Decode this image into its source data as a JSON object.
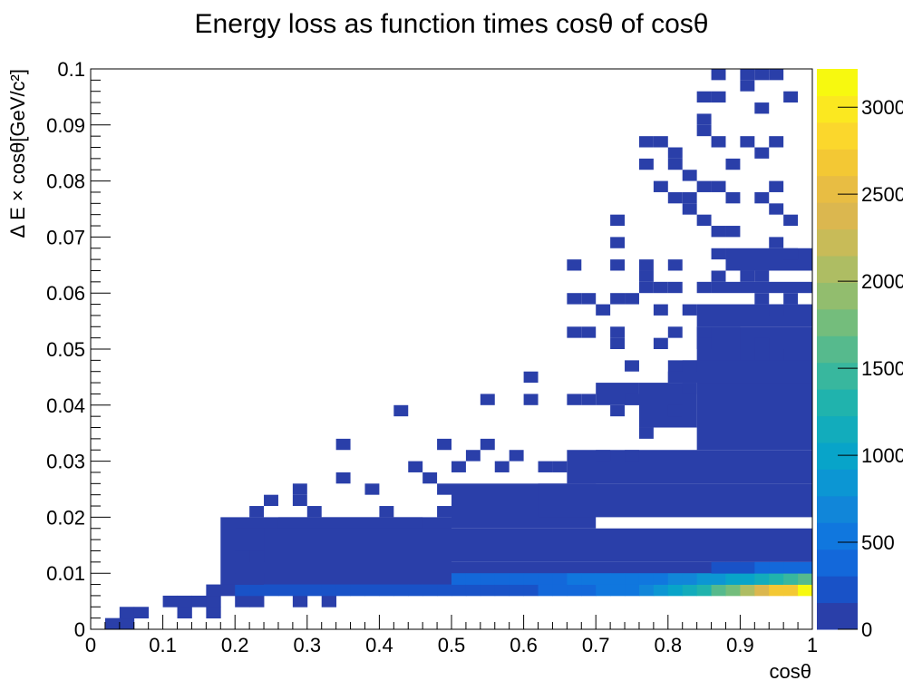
{
  "chart_data": {
    "type": "heatmap",
    "title": "Energy loss as function times cosθ of cosθ",
    "xlabel": "cosθ",
    "ylabel": "Δ E × cosθ[GeV/c²]",
    "xlim": [
      0,
      1
    ],
    "ylim": [
      0,
      0.1
    ],
    "x_ticks": [
      0,
      0.1,
      0.2,
      0.3,
      0.4,
      0.5,
      0.6,
      0.7,
      0.8,
      0.9,
      1
    ],
    "x_tick_labels": [
      "0",
      "0.1",
      "0.2",
      "0.3",
      "0.4",
      "0.5",
      "0.6",
      "0.7",
      "0.8",
      "0.9",
      "1"
    ],
    "y_ticks": [
      0,
      0.01,
      0.02,
      0.03,
      0.04,
      0.05,
      0.06,
      0.07,
      0.08,
      0.09,
      0.1
    ],
    "y_tick_labels": [
      "0",
      "0.01",
      "0.02",
      "0.03",
      "0.04",
      "0.05",
      "0.06",
      "0.07",
      "0.08",
      "0.09",
      "0.1"
    ],
    "colorbar": {
      "range": [
        0,
        3220
      ],
      "ticks": [
        0,
        500,
        1000,
        1500,
        2000,
        2500,
        3000
      ],
      "tick_labels": [
        "0",
        "500",
        "1000",
        "1500",
        "2000",
        "2500",
        "3000"
      ],
      "colors": [
        "#2a3fa9",
        "#1952c7",
        "#1368da",
        "#1077de",
        "#1186d9",
        "#0c96d3",
        "#08a4c9",
        "#12acbc",
        "#20b3ad",
        "#38b79e",
        "#56ba8d",
        "#74bd7c",
        "#92bd6e",
        "#aebd63",
        "#c8bb58",
        "#dbb74f",
        "#e8bd43",
        "#f3c834",
        "#fbd72c",
        "#fbe820",
        "#f7f90f"
      ]
    },
    "bins": {
      "nx": 50,
      "ny": 50,
      "x_width": 0.02,
      "y_width": 0.002,
      "comment_free_cells": [
        [
          0.03,
          0.001,
          60
        ],
        [
          0.05,
          0.001,
          60
        ],
        [
          0.05,
          0.003,
          55
        ],
        [
          0.07,
          0.003,
          50
        ],
        [
          0.11,
          0.005,
          30
        ],
        [
          0.13,
          0.003,
          25
        ],
        [
          0.13,
          0.005,
          40
        ],
        [
          0.15,
          0.005,
          35
        ],
        [
          0.17,
          0.003,
          20
        ],
        [
          0.17,
          0.005,
          45
        ],
        [
          0.17,
          0.007,
          40
        ],
        [
          0.19,
          0.007,
          120
        ],
        [
          0.21,
          0.005,
          30
        ],
        [
          0.21,
          0.007,
          160
        ],
        [
          0.21,
          0.009,
          80
        ],
        [
          0.23,
          0.005,
          60
        ],
        [
          0.23,
          0.007,
          210
        ],
        [
          0.23,
          0.009,
          120
        ],
        [
          0.25,
          0.007,
          190
        ],
        [
          0.27,
          0.007,
          185
        ],
        [
          0.29,
          0.005,
          25
        ],
        [
          0.29,
          0.007,
          170
        ],
        [
          0.31,
          0.007,
          180
        ],
        [
          0.33,
          0.005,
          20
        ],
        [
          0.33,
          0.007,
          175
        ],
        [
          0.35,
          0.007,
          172
        ],
        [
          0.37,
          0.007,
          168
        ],
        [
          0.39,
          0.007,
          165
        ],
        [
          0.41,
          0.007,
          160
        ],
        [
          0.43,
          0.007,
          165
        ],
        [
          0.45,
          0.007,
          170
        ],
        [
          0.47,
          0.007,
          175
        ],
        [
          0.49,
          0.007,
          180
        ],
        [
          0.51,
          0.007,
          185
        ],
        [
          0.51,
          0.009,
          330
        ],
        [
          0.53,
          0.007,
          190
        ],
        [
          0.53,
          0.009,
          340
        ],
        [
          0.55,
          0.007,
          200
        ],
        [
          0.55,
          0.009,
          360
        ],
        [
          0.57,
          0.007,
          210
        ],
        [
          0.57,
          0.009,
          370
        ],
        [
          0.59,
          0.007,
          290
        ],
        [
          0.59,
          0.009,
          380
        ],
        [
          0.61,
          0.007,
          300
        ],
        [
          0.61,
          0.009,
          390
        ],
        [
          0.63,
          0.007,
          320
        ],
        [
          0.63,
          0.009,
          400
        ],
        [
          0.65,
          0.007,
          340
        ],
        [
          0.65,
          0.009,
          450
        ],
        [
          0.67,
          0.007,
          420
        ],
        [
          0.67,
          0.009,
          480
        ],
        [
          0.69,
          0.007,
          440
        ],
        [
          0.69,
          0.009,
          500
        ],
        [
          0.71,
          0.007,
          480
        ],
        [
          0.71,
          0.009,
          520
        ],
        [
          0.73,
          0.007,
          520
        ],
        [
          0.73,
          0.009,
          470
        ],
        [
          0.75,
          0.007,
          600
        ],
        [
          0.75,
          0.009,
          520
        ],
        [
          0.77,
          0.007,
          700
        ],
        [
          0.77,
          0.009,
          560
        ],
        [
          0.79,
          0.007,
          820
        ],
        [
          0.79,
          0.009,
          600
        ],
        [
          0.81,
          0.007,
          950
        ],
        [
          0.81,
          0.009,
          700
        ],
        [
          0.83,
          0.007,
          1150
        ],
        [
          0.83,
          0.009,
          760
        ],
        [
          0.85,
          0.007,
          1350
        ],
        [
          0.85,
          0.009,
          820
        ],
        [
          0.87,
          0.007,
          1550
        ],
        [
          0.87,
          0.009,
          880
        ],
        [
          0.87,
          0.011,
          250
        ],
        [
          0.89,
          0.007,
          1800
        ],
        [
          0.89,
          0.009,
          950
        ],
        [
          0.89,
          0.011,
          280
        ],
        [
          0.91,
          0.007,
          2100
        ],
        [
          0.91,
          0.009,
          1050
        ],
        [
          0.91,
          0.011,
          300
        ],
        [
          0.93,
          0.007,
          2350
        ],
        [
          0.93,
          0.009,
          1150
        ],
        [
          0.93,
          0.011,
          320
        ],
        [
          0.95,
          0.007,
          2700
        ],
        [
          0.95,
          0.009,
          1300
        ],
        [
          0.95,
          0.011,
          340
        ],
        [
          0.97,
          0.007,
          2650
        ],
        [
          0.97,
          0.009,
          1400
        ],
        [
          0.97,
          0.011,
          360
        ],
        [
          0.99,
          0.007,
          3200
        ],
        [
          0.99,
          0.009,
          1550
        ],
        [
          0.99,
          0.011,
          380
        ]
      ]
    }
  }
}
